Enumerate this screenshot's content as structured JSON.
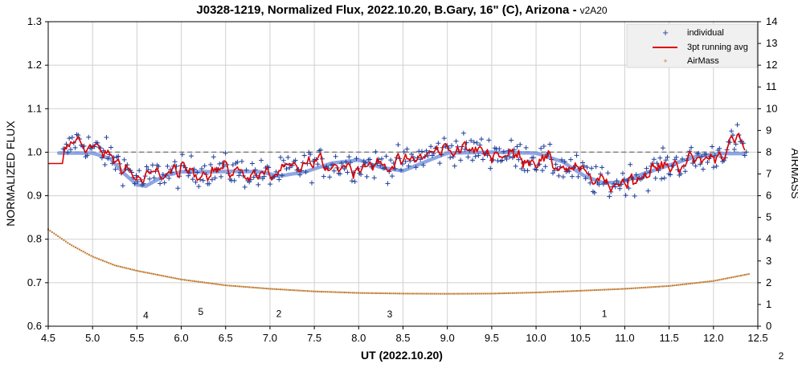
{
  "chart_data": {
    "type": "scatter",
    "title": "J0328-1219, Normalized Flux, 2022.10.20, B.Gary, 16\" (C), Arizona -",
    "title_suffix": "v2A20",
    "xlabel": "UT (2022.10.20)",
    "ylabel": "NORMALIZED FLUX",
    "y2label": "AIRMASS",
    "xlim": [
      4.5,
      12.5
    ],
    "ylim": [
      0.6,
      1.3
    ],
    "y2lim": [
      0,
      14
    ],
    "xticks": [
      "4.5",
      "5.0",
      "5.5",
      "6.0",
      "6.5",
      "7.0",
      "7.5",
      "8.0",
      "8.5",
      "9.0",
      "9.5",
      "10.0",
      "10.5",
      "11.0",
      "11.5",
      "12.0",
      "12.5"
    ],
    "yticks": [
      "0.6",
      "0.7",
      "0.8",
      "0.9",
      "1.0",
      "1.1",
      "1.2",
      "1.3"
    ],
    "y2ticks": [
      "0",
      "1",
      "2",
      "3",
      "4",
      "5",
      "6",
      "7",
      "8",
      "9",
      "10",
      "11",
      "12",
      "13",
      "14"
    ],
    "grid": true,
    "legend_position": "top-right",
    "reference_line": 1.0,
    "corner_label": "2",
    "colors": {
      "individual": "#1f3f9a",
      "running_avg": "#dd0000",
      "model": "#7a97dd",
      "airmass": "#c07a30",
      "reference": "#7f7f7f",
      "grid": "#d0d0d0"
    },
    "series": [
      {
        "name": "individual",
        "marker": "plus",
        "x_range": [
          4.67,
          12.37
        ],
        "count": 460,
        "envelope_x": [
          4.67,
          4.8,
          5.0,
          5.2,
          5.4,
          5.55,
          5.7,
          6.0,
          6.5,
          7.0,
          7.5,
          8.0,
          8.5,
          9.0,
          9.5,
          10.0,
          10.5,
          10.7,
          10.85,
          11.0,
          11.5,
          12.0,
          12.3,
          12.37
        ],
        "envelope_y": [
          0.99,
          1.03,
          1.01,
          0.99,
          0.96,
          0.93,
          0.95,
          0.955,
          0.96,
          0.945,
          0.975,
          0.97,
          0.975,
          1.01,
          1.0,
          0.985,
          0.955,
          0.93,
          0.925,
          0.935,
          0.97,
          0.99,
          1.03,
          1.0
        ],
        "scatter": 0.025
      },
      {
        "name": "3pt running avg",
        "style": "line",
        "x_range": [
          4.5,
          12.37
        ]
      },
      {
        "name": "model",
        "style": "thick-line",
        "x": [
          4.62,
          4.8,
          5.0,
          5.2,
          5.35,
          5.5,
          5.6,
          5.8,
          6.0,
          6.3,
          6.6,
          6.9,
          7.1,
          7.4,
          7.7,
          8.0,
          8.25,
          8.5,
          8.8,
          9.0,
          9.5,
          10.0,
          10.3,
          10.55,
          10.75,
          10.95,
          11.2,
          11.5,
          11.8,
          12.1,
          12.35
        ],
        "y": [
          0.998,
          0.998,
          0.998,
          0.985,
          0.952,
          0.925,
          0.922,
          0.945,
          0.955,
          0.955,
          0.956,
          0.955,
          0.945,
          0.955,
          0.975,
          0.982,
          0.965,
          0.957,
          0.982,
          0.998,
          1.0,
          0.998,
          0.978,
          0.945,
          0.93,
          0.93,
          0.95,
          0.97,
          0.99,
          0.997,
          0.997
        ]
      },
      {
        "name": "AirMass",
        "marker": "dot",
        "axis": "right",
        "x": [
          4.5,
          4.75,
          5.0,
          5.25,
          5.5,
          5.75,
          6.0,
          6.5,
          7.0,
          7.5,
          8.0,
          8.5,
          9.0,
          9.5,
          10.0,
          10.5,
          11.0,
          11.5,
          12.0,
          12.4
        ],
        "y": [
          4.45,
          3.75,
          3.2,
          2.8,
          2.55,
          2.35,
          2.15,
          1.88,
          1.72,
          1.6,
          1.53,
          1.5,
          1.49,
          1.5,
          1.55,
          1.63,
          1.72,
          1.85,
          2.08,
          2.4
        ]
      }
    ],
    "annotations": [
      {
        "text": "4",
        "x": 5.6,
        "y": 0.618
      },
      {
        "text": "5",
        "x": 6.22,
        "y": 0.626
      },
      {
        "text": "2",
        "x": 7.1,
        "y": 0.621
      },
      {
        "text": "3",
        "x": 8.35,
        "y": 0.62
      },
      {
        "text": "1",
        "x": 10.77,
        "y": 0.621
      }
    ]
  }
}
